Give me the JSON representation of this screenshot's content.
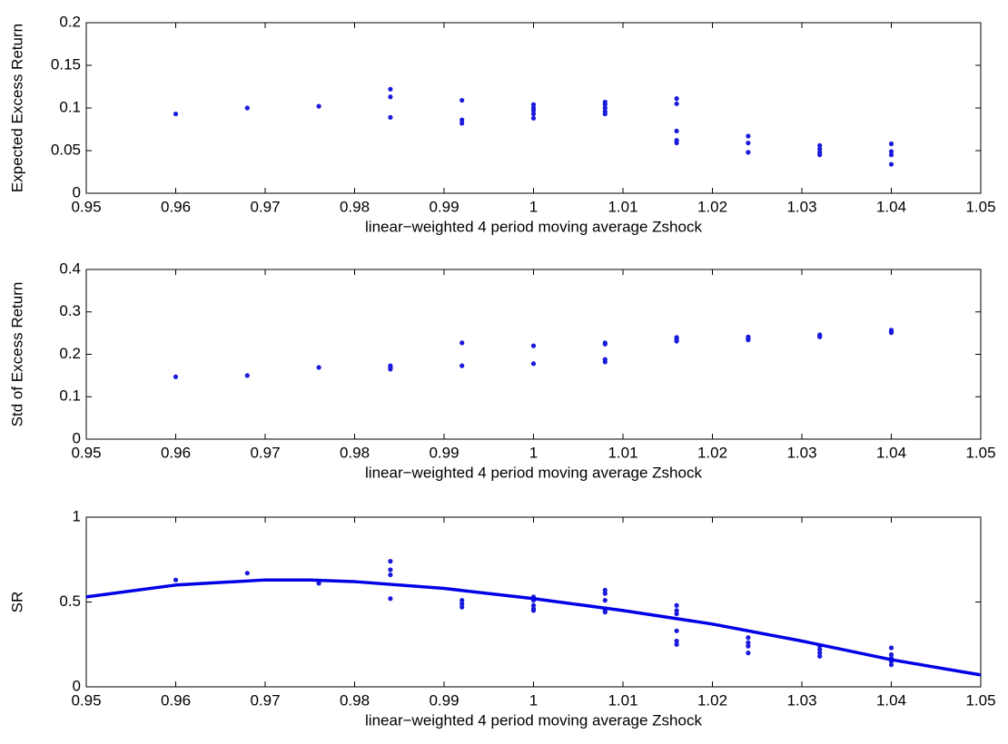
{
  "chart_data": [
    {
      "type": "scatter",
      "xlabel": "linear−weighted 4 period moving average Zshock",
      "ylabel": "Expected Excess Return",
      "xlim": [
        0.95,
        1.05
      ],
      "xticks": [
        0.95,
        0.96,
        0.97,
        0.98,
        0.99,
        1,
        1.01,
        1.02,
        1.03,
        1.04,
        1.05
      ],
      "ylim": [
        0,
        0.2
      ],
      "yticks": [
        0,
        0.05,
        0.1,
        0.15,
        0.2
      ],
      "series": [
        {
          "type": "scatter",
          "color": "#1a1adc",
          "x": [
            0.96,
            0.968,
            0.976,
            0.984,
            0.984,
            0.984,
            0.992,
            0.992,
            0.992,
            1.0,
            1.0,
            1.0,
            1.0,
            1.0,
            1.008,
            1.008,
            1.008,
            1.008,
            1.008,
            1.016,
            1.016,
            1.016,
            1.016,
            1.016,
            1.024,
            1.024,
            1.024,
            1.032,
            1.032,
            1.032,
            1.032,
            1.04,
            1.04,
            1.04,
            1.04
          ],
          "values": [
            0.093,
            0.1,
            0.102,
            0.122,
            0.113,
            0.089,
            0.109,
            0.086,
            0.082,
            0.104,
            0.1,
            0.097,
            0.093,
            0.088,
            0.107,
            0.104,
            0.1,
            0.096,
            0.093,
            0.111,
            0.105,
            0.073,
            0.062,
            0.059,
            0.067,
            0.059,
            0.048,
            0.056,
            0.052,
            0.048,
            0.045,
            0.058,
            0.049,
            0.045,
            0.034
          ]
        }
      ]
    },
    {
      "type": "scatter",
      "xlabel": "linear−weighted 4 period moving average Zshock",
      "ylabel": "Std of Excess Return",
      "xlim": [
        0.95,
        1.05
      ],
      "xticks": [
        0.95,
        0.96,
        0.97,
        0.98,
        0.99,
        1,
        1.01,
        1.02,
        1.03,
        1.04,
        1.05
      ],
      "ylim": [
        0,
        0.4
      ],
      "yticks": [
        0,
        0.1,
        0.2,
        0.3,
        0.4
      ],
      "series": [
        {
          "type": "scatter",
          "color": "#1a1adc",
          "x": [
            0.96,
            0.968,
            0.976,
            0.984,
            0.984,
            0.984,
            0.992,
            0.992,
            1.0,
            1.0,
            1.008,
            1.008,
            1.008,
            1.008,
            1.016,
            1.016,
            1.016,
            1.024,
            1.024,
            1.024,
            1.032,
            1.032,
            1.032,
            1.04,
            1.04,
            1.04
          ],
          "values": [
            0.147,
            0.15,
            0.169,
            0.173,
            0.169,
            0.165,
            0.227,
            0.173,
            0.22,
            0.178,
            0.227,
            0.224,
            0.188,
            0.182,
            0.24,
            0.236,
            0.231,
            0.241,
            0.237,
            0.234,
            0.246,
            0.243,
            0.241,
            0.257,
            0.254,
            0.251
          ]
        }
      ]
    },
    {
      "type": "scatter",
      "xlabel": "linear−weighted 4 period moving average Zshock",
      "ylabel": "SR",
      "xlim": [
        0.95,
        1.05
      ],
      "xticks": [
        0.95,
        0.96,
        0.97,
        0.98,
        0.99,
        1,
        1.01,
        1.02,
        1.03,
        1.04,
        1.05
      ],
      "ylim": [
        0,
        1
      ],
      "yticks": [
        0,
        0.5,
        1
      ],
      "series": [
        {
          "type": "scatter",
          "color": "#1a1adc",
          "x": [
            0.96,
            0.968,
            0.976,
            0.984,
            0.984,
            0.984,
            0.984,
            0.992,
            0.992,
            0.992,
            1.0,
            1.0,
            1.0,
            1.0,
            1.0,
            1.008,
            1.008,
            1.008,
            1.008,
            1.008,
            1.008,
            1.016,
            1.016,
            1.016,
            1.016,
            1.016,
            1.016,
            1.024,
            1.024,
            1.024,
            1.024,
            1.032,
            1.032,
            1.032,
            1.032,
            1.04,
            1.04,
            1.04,
            1.04,
            1.04
          ],
          "values": [
            0.63,
            0.67,
            0.61,
            0.74,
            0.69,
            0.66,
            0.52,
            0.51,
            0.49,
            0.47,
            0.53,
            0.51,
            0.48,
            0.46,
            0.45,
            0.57,
            0.55,
            0.51,
            0.46,
            0.45,
            0.44,
            0.48,
            0.45,
            0.43,
            0.33,
            0.27,
            0.25,
            0.29,
            0.26,
            0.24,
            0.2,
            0.24,
            0.22,
            0.2,
            0.18,
            0.23,
            0.19,
            0.17,
            0.15,
            0.13
          ]
        },
        {
          "type": "line",
          "color": "#0000e6",
          "x": [
            0.95,
            0.96,
            0.97,
            0.975,
            0.98,
            0.99,
            1.0,
            1.01,
            1.02,
            1.03,
            1.04,
            1.05
          ],
          "values": [
            0.53,
            0.6,
            0.63,
            0.63,
            0.62,
            0.58,
            0.52,
            0.45,
            0.37,
            0.27,
            0.16,
            0.07
          ]
        }
      ]
    }
  ]
}
